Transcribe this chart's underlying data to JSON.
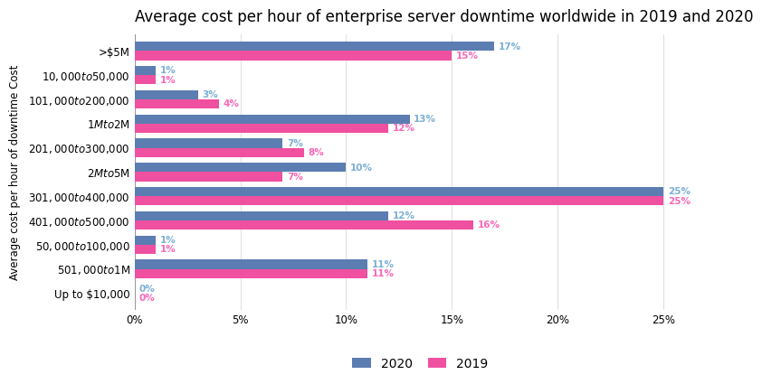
{
  "title": "Average cost per hour of enterprise server downtime worldwide in 2019 and 2020",
  "ylabel": "Average cost per hour of downtime Cost",
  "categories": [
    "Up to $10,000",
    "$501,000 to $1M",
    "$50,000 to $100,000",
    "$401,000 to $500,000",
    "$301,000 to $400,000",
    "$2M to $5M",
    "$201,000 to $300,000",
    "$1M to $2M",
    "$101,000 to $200,000",
    "$10,000 to $50,000",
    ">$5M"
  ],
  "values_2020": [
    0,
    11,
    1,
    12,
    25,
    10,
    7,
    13,
    3,
    1,
    17
  ],
  "values_2019": [
    0,
    11,
    1,
    16,
    25,
    7,
    8,
    12,
    4,
    1,
    15
  ],
  "color_2020": "#5b7db1",
  "color_2019": "#f050a0",
  "label_color_2020": "#7bafd4",
  "label_color_2019": "#f868b8",
  "background_color": "#ffffff",
  "grid_color": "#e0e0e0",
  "bar_height": 0.38,
  "xlim": [
    0,
    27
  ],
  "xticks": [
    0,
    5,
    10,
    15,
    20,
    25
  ],
  "xtick_labels": [
    "0%",
    "5%",
    "10%",
    "15%",
    "20%",
    "25%"
  ],
  "title_fontsize": 12,
  "axis_label_fontsize": 8.5,
  "tick_fontsize": 8.5,
  "legend_fontsize": 10
}
